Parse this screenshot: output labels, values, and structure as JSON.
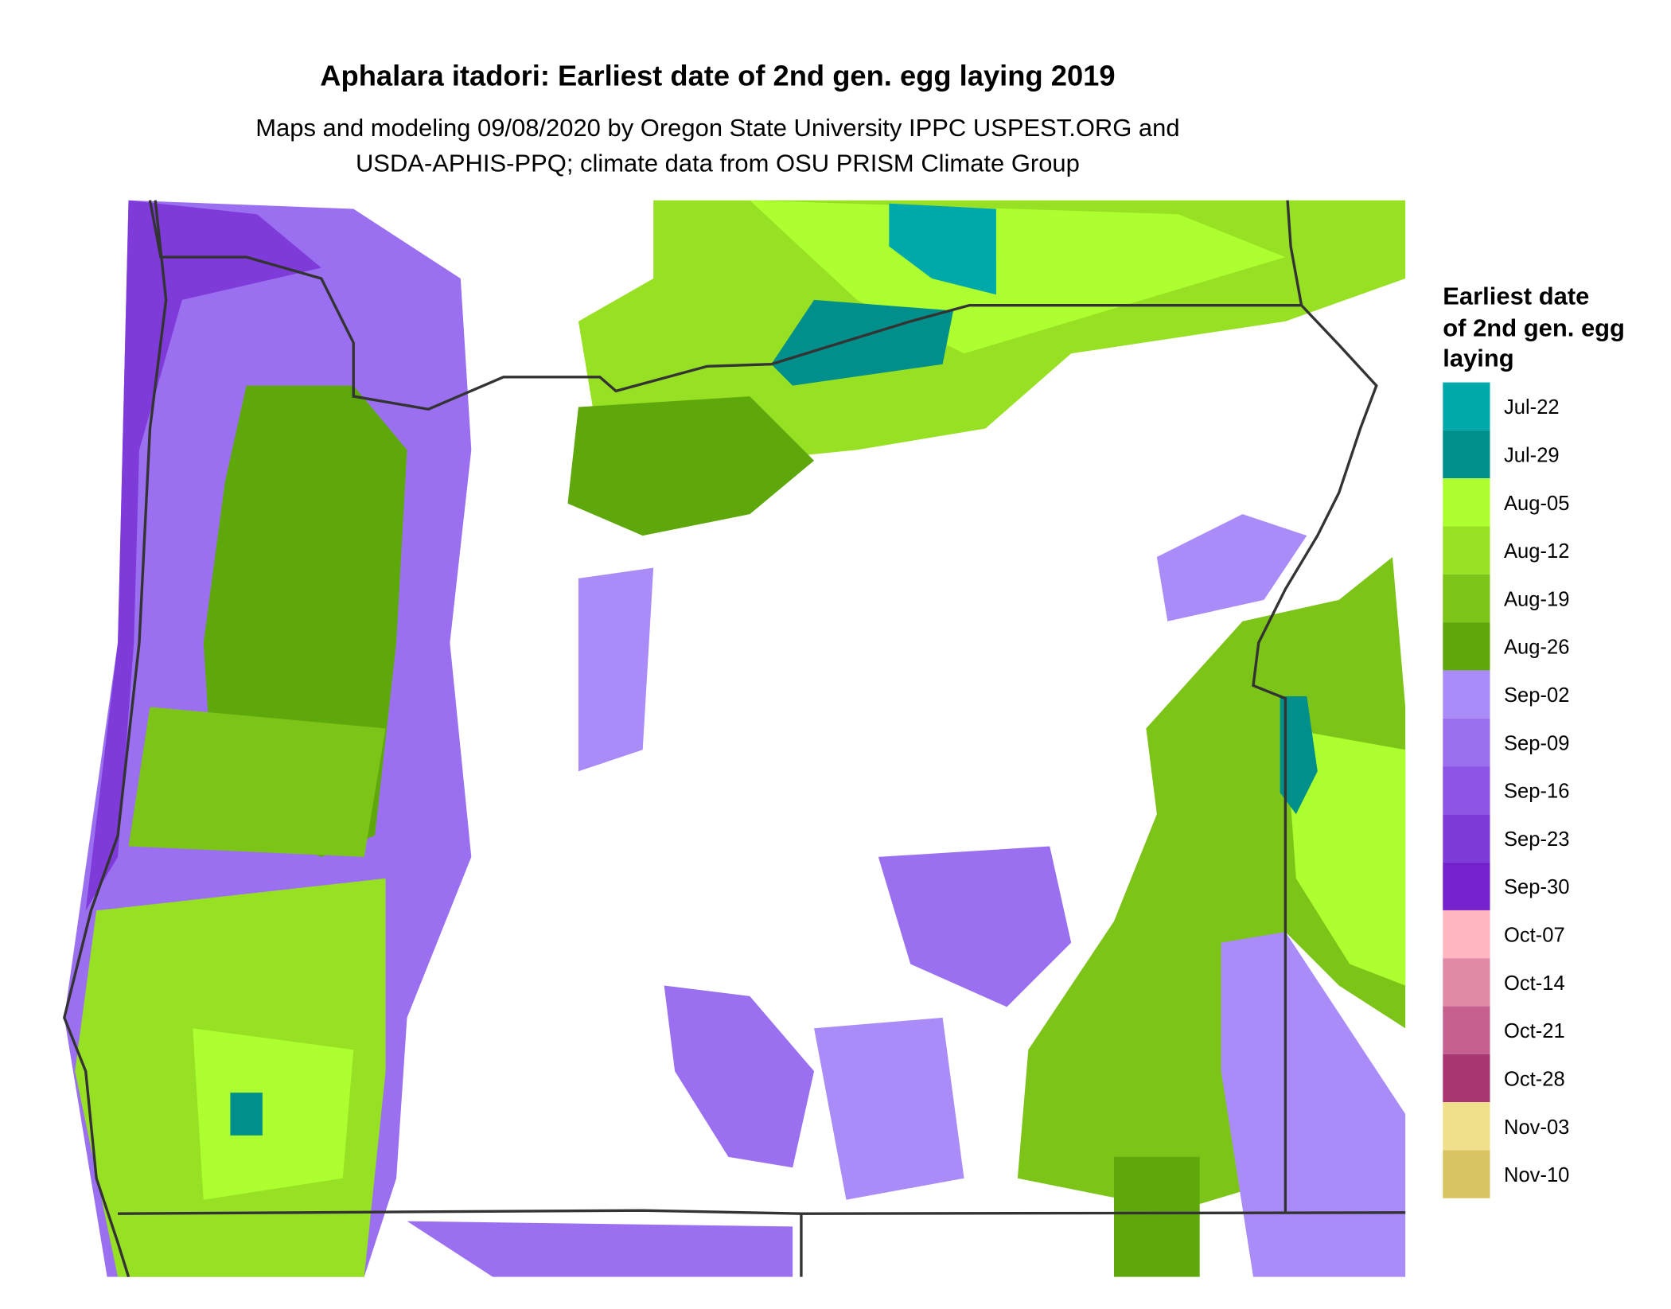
{
  "title": "Aphalara itadori: Earliest date of 2nd gen. egg laying 2019",
  "subtitle": [
    "Maps and modeling 09/08/2020 by Oregon State University IPPC USPEST.ORG and",
    "USDA-APHIS-PPQ; climate data from OSU PRISM Climate Group"
  ],
  "legend": {
    "title": [
      "Earliest date",
      "of 2nd gen. egg",
      "laying"
    ],
    "entries": [
      {
        "label": "Jul-22",
        "color": "#00a9a9"
      },
      {
        "label": "Jul-29",
        "color": "#008f8a"
      },
      {
        "label": "Aug-05",
        "color": "#adff2f"
      },
      {
        "label": "Aug-12",
        "color": "#98e024"
      },
      {
        "label": "Aug-19",
        "color": "#7dc418"
      },
      {
        "label": "Aug-26",
        "color": "#5fa80c"
      },
      {
        "label": "Sep-02",
        "color": "#a98cf7"
      },
      {
        "label": "Sep-09",
        "color": "#9b70f0"
      },
      {
        "label": "Sep-16",
        "color": "#8c55e6"
      },
      {
        "label": "Sep-23",
        "color": "#7f3bda"
      },
      {
        "label": "Sep-30",
        "color": "#7322cc"
      },
      {
        "label": "Oct-07",
        "color": "#ffb6c1"
      },
      {
        "label": "Oct-14",
        "color": "#e18aa6"
      },
      {
        "label": "Oct-21",
        "color": "#c5608f"
      },
      {
        "label": "Oct-28",
        "color": "#a83670"
      },
      {
        "label": "Nov-03",
        "color": "#f0e08c"
      },
      {
        "label": "Nov-10",
        "color": "#d8c462"
      }
    ]
  }
}
